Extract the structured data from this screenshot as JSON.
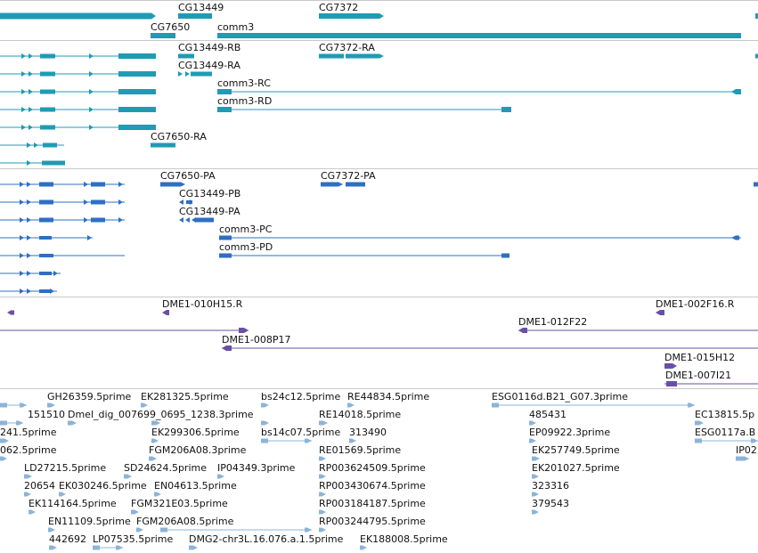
{
  "colors": {
    "gene": "#1f9bb4",
    "protein": "#2e6fc4",
    "clone": "#6a4fa6",
    "est": "#8cb4d8",
    "separator": "#c8c8c8",
    "text": "#111111"
  },
  "tracks": [
    {
      "id": "genes",
      "color": "#1f9bb4",
      "labels": [
        {
          "text": "CG13449"
        },
        {
          "text": "CG7372"
        },
        {
          "text": "CG7650"
        },
        {
          "text": "comm3"
        }
      ]
    },
    {
      "id": "transcripts",
      "color": "#1f9bb4",
      "labels": [
        {
          "text": "CG13449-RB"
        },
        {
          "text": "CG7372-RA"
        },
        {
          "text": "CG13449-RA"
        },
        {
          "text": "comm3-RC"
        },
        {
          "text": "comm3-RD"
        },
        {
          "text": "CG7650-RA"
        }
      ]
    },
    {
      "id": "proteins",
      "color": "#2e6fc4",
      "labels": [
        {
          "text": "CG7650-PA"
        },
        {
          "text": "CG7372-PA"
        },
        {
          "text": "CG13449-PB"
        },
        {
          "text": "CG13449-PA"
        },
        {
          "text": "comm3-PC"
        },
        {
          "text": "comm3-PD"
        }
      ]
    },
    {
      "id": "clones",
      "color": "#6a4fa6",
      "labels": [
        {
          "text": "DME1-010H15.R"
        },
        {
          "text": "DME1-002F16.R"
        },
        {
          "text": "DME1-012F22"
        },
        {
          "text": "DME1-008P17"
        },
        {
          "text": "DME1-015H12"
        },
        {
          "text": "DME1-007I21"
        }
      ]
    },
    {
      "id": "ests",
      "color": "#8cb4d8",
      "labels": [
        {
          "text": "GH26359.5prime"
        },
        {
          "text": "EK281325.5prime"
        },
        {
          "text": "bs24c12.5prime"
        },
        {
          "text": "RE44834.5prime"
        },
        {
          "text": "ESG0116d.B21_G07.3prime"
        },
        {
          "text": "151510"
        },
        {
          "text": "Dmel_dig_007699_0695_1238.3prime"
        },
        {
          "text": "RE14018.5prime"
        },
        {
          "text": "485431"
        },
        {
          "text": "EC13815.5p"
        },
        {
          "text": "241.5prime"
        },
        {
          "text": "EK299306.5prime"
        },
        {
          "text": "bs14c07.5prime"
        },
        {
          "text": "313490"
        },
        {
          "text": "EP09922.3prime"
        },
        {
          "text": "ESG0117a.B"
        },
        {
          "text": "062.5prime"
        },
        {
          "text": "FGM206A08.3prime"
        },
        {
          "text": "RE01569.5prime"
        },
        {
          "text": "EK257749.5prime"
        },
        {
          "text": "IP02"
        },
        {
          "text": "LD27215.5prime"
        },
        {
          "text": "SD24624.5prime"
        },
        {
          "text": "IP04349.3prime"
        },
        {
          "text": "RP003624509.5prime"
        },
        {
          "text": "EK201027.5prime"
        },
        {
          "text": "20654"
        },
        {
          "text": "EK030246.5prime"
        },
        {
          "text": "EN04613.5prime"
        },
        {
          "text": "RP003430674.5prime"
        },
        {
          "text": "323316"
        },
        {
          "text": "EK114164.5prime"
        },
        {
          "text": "FGM321E03.5prime"
        },
        {
          "text": "RP003184187.5prime"
        },
        {
          "text": "379543"
        },
        {
          "text": "EN11109.5prime"
        },
        {
          "text": "FGM206A08.5prime"
        },
        {
          "text": "RP003244795.5prime"
        },
        {
          "text": "442692"
        },
        {
          "text": "LP07535.5prime"
        },
        {
          "text": "DMG2-chr3L.16.076.a.1.5prime"
        },
        {
          "text": "EK188008.5prime"
        }
      ]
    }
  ]
}
